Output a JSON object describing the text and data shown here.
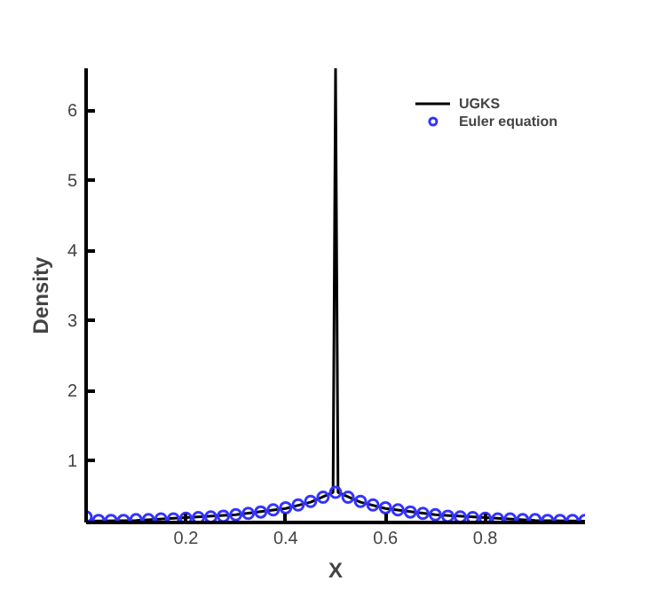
{
  "chart_data": {
    "type": "line",
    "xlabel": "X",
    "ylabel": "Density",
    "xlim": [
      0,
      1
    ],
    "ylim": [
      0.12,
      6.6
    ],
    "xticks": [
      0.2,
      0.4,
      0.6,
      0.8
    ],
    "yticks": [
      1,
      2,
      3,
      4,
      5,
      6
    ],
    "grid": false,
    "legend": "top right",
    "series": [
      {
        "name": "UGKS",
        "color": "#000000",
        "x": [
          0,
          0.1,
          0.2,
          0.3,
          0.4,
          0.45,
          0.495,
          0.5,
          0.505,
          0.55,
          0.6,
          0.7,
          0.8,
          0.9,
          1
        ],
        "values": [
          0.14,
          0.15,
          0.19,
          0.23,
          0.32,
          0.41,
          0.55,
          6.6,
          0.55,
          0.41,
          0.32,
          0.23,
          0.19,
          0.15,
          0.14
        ]
      },
      {
        "name": "Euler equation",
        "type": "scatter",
        "marker": "circle",
        "color": "#3333ff",
        "x": [
          0,
          0.025,
          0.05,
          0.075,
          0.1,
          0.125,
          0.15,
          0.175,
          0.2,
          0.225,
          0.25,
          0.275,
          0.3,
          0.325,
          0.35,
          0.375,
          0.4,
          0.425,
          0.45,
          0.475,
          0.5,
          0.525,
          0.55,
          0.575,
          0.6,
          0.625,
          0.65,
          0.675,
          0.7,
          0.725,
          0.75,
          0.775,
          0.8,
          0.825,
          0.85,
          0.875,
          0.9,
          0.925,
          0.95,
          0.975,
          1
        ],
        "values": [
          0.2,
          0.15,
          0.15,
          0.15,
          0.16,
          0.16,
          0.17,
          0.17,
          0.18,
          0.19,
          0.2,
          0.21,
          0.23,
          0.25,
          0.27,
          0.3,
          0.33,
          0.37,
          0.42,
          0.48,
          0.55,
          0.48,
          0.42,
          0.37,
          0.33,
          0.3,
          0.27,
          0.25,
          0.23,
          0.21,
          0.2,
          0.19,
          0.18,
          0.17,
          0.17,
          0.16,
          0.16,
          0.15,
          0.15,
          0.15,
          0.15
        ]
      }
    ]
  }
}
